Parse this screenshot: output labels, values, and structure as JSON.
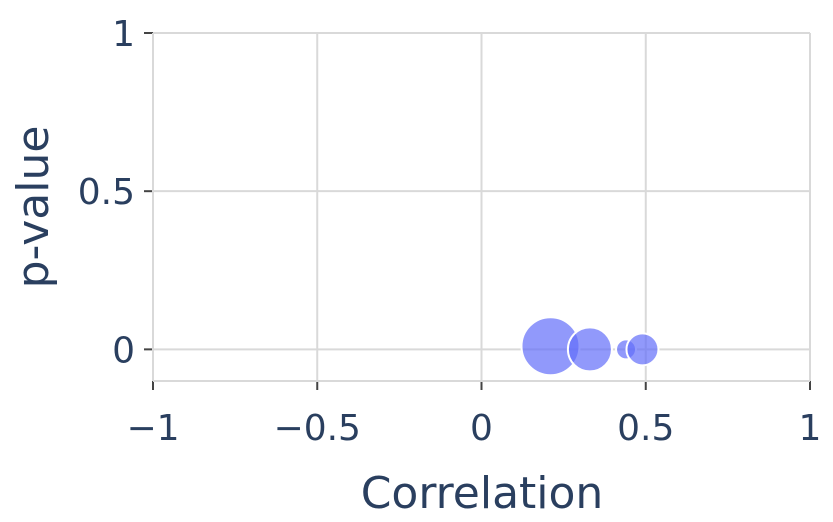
{
  "chart_data": {
    "type": "scatter",
    "title": "",
    "xlabel": "Correlation",
    "ylabel": "p-value",
    "xlim": [
      -1,
      1
    ],
    "ylim": [
      -0.1,
      1
    ],
    "x_ticks": [
      -1,
      -0.5,
      0,
      0.5,
      1
    ],
    "x_tick_labels": [
      "−1",
      "−0.5",
      "0",
      "0.5",
      "1"
    ],
    "y_ticks": [
      0,
      0.5,
      1
    ],
    "y_tick_labels": [
      "0",
      "0.5",
      "1"
    ],
    "grid": true,
    "marker_color": "#636efa",
    "points": [
      {
        "x": 0.21,
        "y": 0.01,
        "size": 58
      },
      {
        "x": 0.33,
        "y": 0.0,
        "size": 44
      },
      {
        "x": 0.44,
        "y": 0.0,
        "size": 20
      },
      {
        "x": 0.49,
        "y": 0.0,
        "size": 32
      }
    ]
  }
}
